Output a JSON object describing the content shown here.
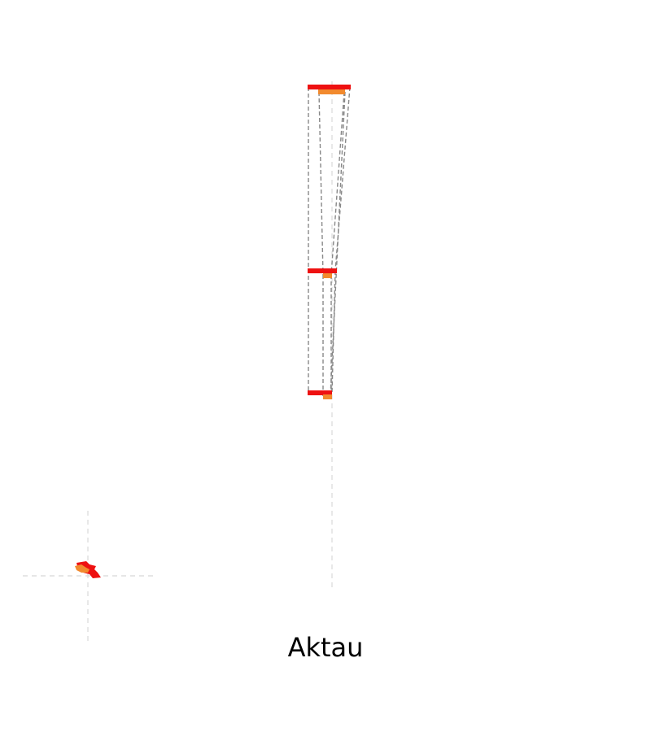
{
  "map": {
    "place_name": "Aktau",
    "colors": {
      "bar_primary": "#ee1111",
      "bar_secondary": "#f28a2e",
      "connector_lines": "#888888",
      "axis_lines": "#d8d8d8",
      "background": "#ffffff"
    },
    "inset_marker": {
      "icon": "region-shape-icon",
      "colors": [
        "#ee1111",
        "#f28a2e"
      ]
    }
  }
}
